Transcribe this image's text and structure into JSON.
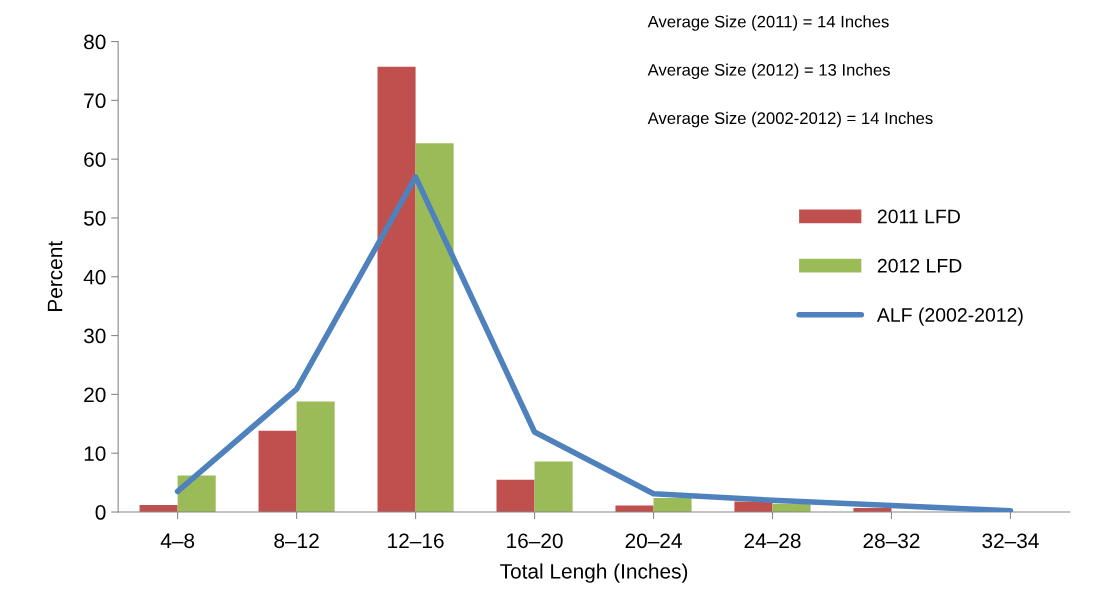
{
  "chart_data": {
    "type": "bar",
    "xlabel": "Total Lengh (Inches)",
    "ylabel": "Percent",
    "categories": [
      "4–8",
      "8–12",
      "12–16",
      "16–20",
      "20–24",
      "24–28",
      "28–32",
      "32–34"
    ],
    "series": [
      {
        "name": "2011 LFD",
        "color": "#c0504d",
        "values": [
          1.2,
          13.8,
          75.7,
          5.5,
          1.1,
          1.8,
          0.7,
          0
        ]
      },
      {
        "name": "2012 LFD",
        "color": "#9bbb59",
        "values": [
          6.2,
          18.8,
          62.7,
          8.6,
          2.4,
          1.4,
          null,
          0
        ]
      },
      {
        "name": "ALF (2002-2012)",
        "color": "#4f81bd",
        "type": "line",
        "values": [
          3.5,
          20.9,
          57,
          13.6,
          3.1,
          2.0,
          1.1,
          0.2
        ]
      }
    ],
    "ylim": [
      0,
      80
    ],
    "yticks": [
      0,
      10,
      20,
      30,
      40,
      50,
      60,
      70,
      80
    ],
    "grid": false,
    "legend": "right",
    "annotations": [
      "Average Size (2011) = 14 Inches",
      "Average Size (2012) = 13 Inches",
      "Average Size (2002-2012) = 14 Inches"
    ]
  }
}
